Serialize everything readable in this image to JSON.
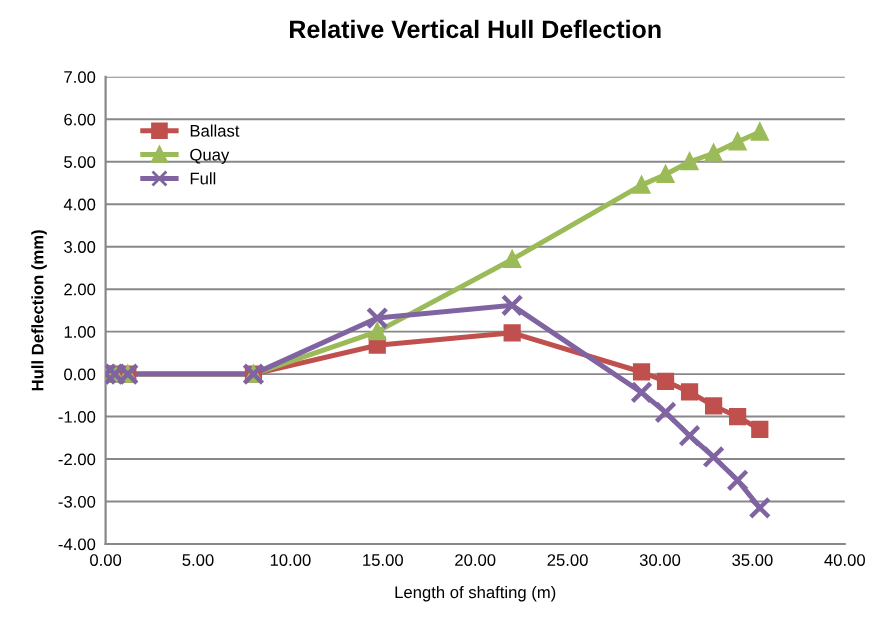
{
  "chart_data": {
    "type": "line",
    "title": "Relative Vertical Hull Deflection",
    "xlabel": "Length of shafting (m)",
    "ylabel": "Hull Deflection (mm)",
    "xlim": [
      0,
      40
    ],
    "xticks": [
      {
        "value": 0,
        "label": "0.00"
      },
      {
        "value": 5,
        "label": "5.00"
      },
      {
        "value": 10,
        "label": "10.00"
      },
      {
        "value": 15,
        "label": "15.00"
      },
      {
        "value": 20,
        "label": "20.00"
      },
      {
        "value": 25,
        "label": "25.00"
      },
      {
        "value": 30,
        "label": "30.00"
      },
      {
        "value": 35,
        "label": "35.00"
      },
      {
        "value": 40,
        "label": "40.00"
      }
    ],
    "ylim": [
      -4,
      7
    ],
    "yticks": [
      {
        "value": -4,
        "label": "-4.00"
      },
      {
        "value": -3,
        "label": "-3.00"
      },
      {
        "value": -2,
        "label": "-2.00"
      },
      {
        "value": -1,
        "label": "-1.00"
      },
      {
        "value": 0,
        "label": "0.00"
      },
      {
        "value": 1,
        "label": "1.00"
      },
      {
        "value": 2,
        "label": "2.00"
      },
      {
        "value": 3,
        "label": "3.00"
      },
      {
        "value": 4,
        "label": "4.00"
      },
      {
        "value": 5,
        "label": "5.00"
      },
      {
        "value": 6,
        "label": "6.00"
      },
      {
        "value": 7,
        "label": "7.00"
      }
    ],
    "x": [
      0,
      0.5,
      1.2,
      8.0,
      14.7,
      22.0,
      29.0,
      30.3,
      31.6,
      32.9,
      34.2,
      35.4
    ],
    "grid": "y",
    "legend": "top left",
    "series": [
      {
        "name": "Ballast",
        "color": "#c0504d",
        "marker": "square",
        "values": [
          0,
          0,
          0,
          0,
          0.68,
          0.97,
          0.05,
          -0.17,
          -0.42,
          -0.75,
          -1.0,
          -1.3
        ]
      },
      {
        "name": "Quay",
        "color": "#9bbb59",
        "marker": "triangle",
        "values": [
          0,
          0,
          0,
          0,
          1.0,
          2.7,
          4.45,
          4.7,
          5.0,
          5.2,
          5.47,
          5.7
        ]
      },
      {
        "name": "Full",
        "color": "#8064a2",
        "marker": "cross",
        "values": [
          0,
          0,
          0,
          0,
          1.32,
          1.62,
          -0.43,
          -0.9,
          -1.45,
          -1.95,
          -2.5,
          -3.15
        ]
      }
    ]
  }
}
